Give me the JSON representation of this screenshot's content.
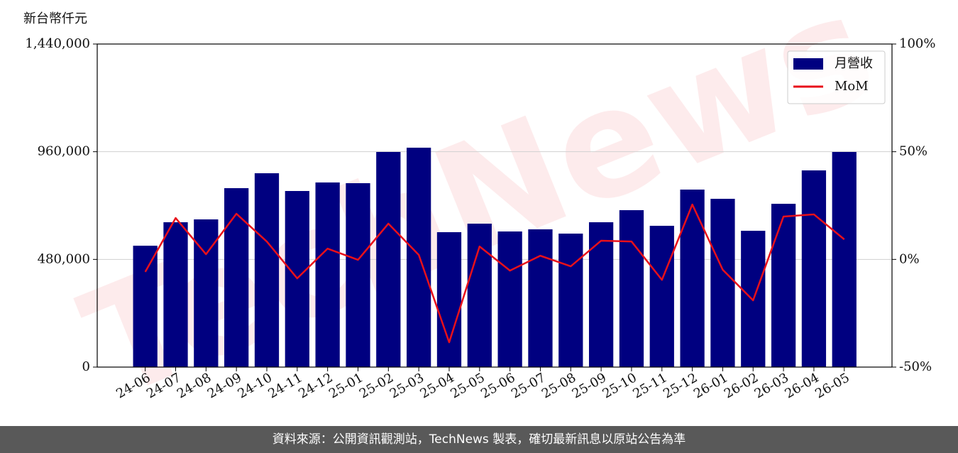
{
  "chart_data": {
    "type": "bar_line",
    "y_label": "新台幣仟元",
    "watermark": "TechNews",
    "categories": [
      "24-06",
      "24-07",
      "24-08",
      "24-09",
      "24-10",
      "24-11",
      "24-12",
      "25-01",
      "25-02",
      "25-03",
      "25-04",
      "25-05",
      "25-06",
      "25-07",
      "25-08",
      "25-09",
      "25-10",
      "25-11",
      "25-12",
      "26-01",
      "26-02",
      "26-03",
      "26-04",
      "26-05"
    ],
    "series": [
      {
        "name": "月營收",
        "type": "bar",
        "color": "#000080",
        "values": [
          541000,
          645600,
          658300,
          797500,
          864000,
          784900,
          822900,
          819700,
          958900,
          977900,
          601300,
          639300,
          604500,
          614000,
          595000,
          645600,
          699400,
          629800,
          791200,
          750100,
          607600,
          727900,
          876700,
          958900
        ]
      },
      {
        "name": "MoM",
        "type": "line",
        "axis": "y2",
        "color": "#e8101a",
        "values": [
          -5.8,
          19.2,
          2.4,
          21.2,
          8.3,
          -8.8,
          5.0,
          -0.2,
          16.6,
          2.1,
          -38.5,
          6.0,
          -5.2,
          1.7,
          -3.2,
          8.7,
          8.3,
          -9.5,
          25.5,
          -4.8,
          -19.0,
          19.9,
          20.9,
          9.3
        ]
      }
    ],
    "ylim": [
      0,
      1440000
    ],
    "yticks": [
      0,
      {
        "value": 480000,
        "label": "480,000"
      },
      {
        "value": 960000,
        "label": "960,000"
      },
      {
        "value": 1440000,
        "label": "1,440,000"
      }
    ],
    "y2lim": [
      -50,
      100
    ],
    "y2ticks": [
      {
        "value": -50,
        "label": "-50%"
      },
      {
        "value": 0,
        "label": "0%"
      },
      {
        "value": 50,
        "label": "50%"
      },
      {
        "value": 100,
        "label": "100%"
      }
    ],
    "grid": true,
    "legend": "upper right"
  },
  "footer": "資料來源：公開資訊觀測站，TechNews 製表，確切最新訊息以原站公告為準"
}
